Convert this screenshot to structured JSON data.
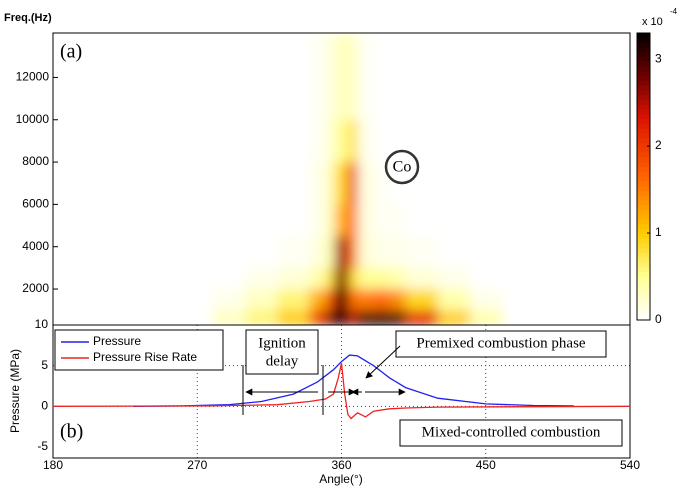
{
  "chart_data": [
    {
      "type": "heatmap",
      "ylabel": "Freq.(Hz)",
      "annotation": "(a)",
      "marker_label": "Co",
      "xlim": [
        180,
        540
      ],
      "ylim": [
        300,
        14100
      ],
      "yticks": [
        2000,
        4000,
        6000,
        8000,
        10000,
        12000
      ],
      "x_edges": [
        280,
        300,
        320,
        340,
        350,
        356,
        364,
        370,
        380,
        390,
        400,
        420,
        440,
        460
      ],
      "y_edges": [
        300,
        1000,
        2000,
        3000,
        4500,
        6000,
        8000,
        10000,
        14100
      ],
      "z": [
        [
          0.3,
          0.6,
          1.0,
          2.0,
          2.8,
          3.2,
          2.5,
          3.0,
          3.1,
          3.0,
          2.2,
          1.0,
          0.4
        ],
        [
          0.1,
          0.3,
          0.6,
          1.2,
          1.8,
          3.1,
          1.6,
          1.5,
          1.6,
          1.4,
          0.9,
          0.4,
          0.1
        ],
        [
          0,
          0.1,
          0.2,
          0.4,
          0.8,
          2.8,
          0.9,
          0.5,
          0.5,
          0.4,
          0.2,
          0.1,
          0
        ],
        [
          0,
          0,
          0.05,
          0.15,
          0.4,
          2.6,
          1.5,
          0.2,
          0.1,
          0.1,
          0.05,
          0,
          0
        ],
        [
          0,
          0,
          0,
          0.1,
          0.3,
          1.2,
          1.6,
          0.15,
          0.05,
          0.05,
          0,
          0,
          0
        ],
        [
          0,
          0,
          0,
          0.1,
          0.3,
          0.9,
          2.0,
          0.15,
          0.05,
          0,
          0,
          0,
          0
        ],
        [
          0,
          0,
          0,
          0.05,
          0.2,
          0.5,
          0.8,
          0.1,
          0,
          0,
          0,
          0,
          0
        ],
        [
          0,
          0,
          0,
          0.05,
          0.15,
          0.3,
          0.3,
          0.05,
          0,
          0,
          0,
          0,
          0
        ]
      ],
      "clim": [
        0,
        3.3
      ],
      "cticks": [
        0,
        1,
        2,
        3
      ],
      "colorbar_label": "x 10",
      "colorbar_exponent": "-4"
    },
    {
      "type": "line",
      "xlabel": "Angle(°)",
      "ylabel": "Pressure (MPa)",
      "annotation": "(b)",
      "xlim": [
        180,
        540
      ],
      "ylim": [
        -5,
        10
      ],
      "xticks": [
        180,
        270,
        360,
        450,
        540
      ],
      "yticks": [
        -5,
        0,
        5,
        10
      ],
      "grid": true,
      "legend": "upper left",
      "series": [
        {
          "name": "Pressure",
          "color": "#2222ee",
          "x": [
            230,
            260,
            290,
            310,
            330,
            345,
            355,
            360,
            365,
            370,
            380,
            390,
            400,
            420,
            450,
            480,
            505
          ],
          "values": [
            0,
            0.05,
            0.2,
            0.6,
            1.5,
            3,
            4.5,
            5.5,
            6.3,
            6.2,
            5,
            3.5,
            2.3,
            1.0,
            0.3,
            0.1,
            0.05
          ]
        },
        {
          "name": "Pressure Rise Rate",
          "color": "#ee2222",
          "x": [
            180,
            280,
            320,
            340,
            350,
            355,
            358,
            360,
            362,
            364,
            366,
            370,
            375,
            380,
            390,
            400,
            420,
            540
          ],
          "values": [
            0,
            0.05,
            0.2,
            0.6,
            0.9,
            1.5,
            3.5,
            5.3,
            1.5,
            -1.0,
            -1.5,
            -0.8,
            -1.3,
            -0.6,
            -0.3,
            -0.2,
            -0.1,
            0
          ]
        }
      ],
      "annotations": [
        "Ignition",
        "delay",
        "Premixed combustion phase",
        "Mixed-controlled combustion"
      ]
    }
  ]
}
